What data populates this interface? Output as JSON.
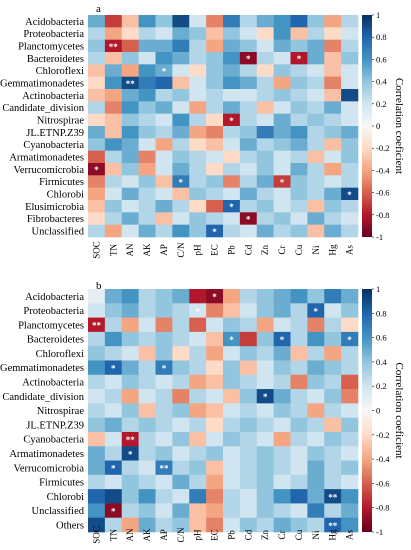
{
  "colorbar": {
    "ticks": [
      "1",
      "0.8",
      "0.6",
      "0.4",
      "0.2",
      "0",
      "-0.2",
      "-0.4",
      "-0.6",
      "-0.8",
      "-1"
    ],
    "tick_values": [
      1,
      0.8,
      0.6,
      0.4,
      0.2,
      0,
      -0.2,
      -0.4,
      -0.6,
      -0.8,
      -1
    ],
    "label": "Correlation coeficient",
    "palette": [
      "#67001f",
      "#b2182b",
      "#d6604d",
      "#f4a582",
      "#fddbc7",
      "#f7f7f7",
      "#d1e5f0",
      "#92c5de",
      "#4393c3",
      "#2166ac",
      "#053061"
    ]
  },
  "chart_data": [
    {
      "type": "heatmap",
      "panel_label": "a",
      "colorbar_label": "Correlation coeficient",
      "zlim": [
        -1,
        1
      ],
      "x": [
        "SOC",
        "TN",
        "AN",
        "AK",
        "AP",
        "C/N",
        "pH",
        "EC",
        "Pb",
        "Cd",
        "Zn",
        "Cr",
        "Cu",
        "Ni",
        "Hg",
        "As"
      ],
      "y": [
        "Acidobacteria",
        "Proteobacteria",
        "Planctomycetes",
        "Bacteroidetes",
        "Chloroflexi",
        "Gemmatimonadetes",
        "Actinobacteria",
        "Candidate_division",
        "Nitrospirae",
        "JL.ETNP.Z39",
        "Cyanobacteria",
        "Armatimonadetes",
        "Verrucomicrobia",
        "Firmicutes",
        "Chlorobi",
        "Elusimicrobia",
        "Fibrobacteres",
        "Unclassified"
      ],
      "z": [
        [
          0.5,
          -0.7,
          -0.3,
          0.6,
          0.4,
          0.9,
          0.2,
          -0.5,
          0.7,
          0.3,
          0.5,
          0.6,
          0.8,
          0.4,
          -0.4,
          0.3
        ],
        [
          0.3,
          -0.4,
          -0.2,
          0.3,
          0.2,
          0.5,
          0.4,
          -0.3,
          0.4,
          0.2,
          -0.2,
          0.6,
          -0.3,
          0.3,
          -0.2,
          0.2
        ],
        [
          0.4,
          -0.8,
          -0.6,
          0.5,
          0.5,
          0.7,
          0.3,
          -0.4,
          0.5,
          0.4,
          0.2,
          0.5,
          0.4,
          0.5,
          -0.5,
          0.3
        ],
        [
          0.3,
          -0.3,
          0.4,
          0.2,
          0.6,
          0.5,
          0.3,
          0.4,
          0.6,
          -0.9,
          0.3,
          0.2,
          -0.8,
          0.5,
          -0.3,
          0.4
        ],
        [
          -0.3,
          0.5,
          -0.4,
          0.6,
          0.5,
          0.2,
          -0.2,
          0.4,
          0.5,
          0.3,
          -0.2,
          0.4,
          0.3,
          0.2,
          -0.3,
          0.2
        ],
        [
          -0.2,
          0.6,
          0.9,
          0.7,
          0.8,
          -0.3,
          0.2,
          0.4,
          0.6,
          0.5,
          0.3,
          -0.4,
          0.4,
          0.3,
          -0.5,
          0.2
        ],
        [
          -0.3,
          -0.4,
          0.5,
          0.6,
          0.3,
          0.4,
          0.2,
          0.3,
          0.2,
          0.2,
          0.3,
          0.4,
          0.3,
          0.2,
          -0.3,
          0.9
        ],
        [
          0.3,
          -0.5,
          0.6,
          0.4,
          0.5,
          0.2,
          -0.4,
          0.3,
          0.5,
          0.3,
          -0.3,
          0.2,
          0.4,
          0.3,
          0.5,
          0.2
        ],
        [
          -0.2,
          -0.3,
          0.4,
          0.3,
          0.2,
          0.6,
          0.3,
          -0.2,
          -0.8,
          0.3,
          0.2,
          0.5,
          0.3,
          0.4,
          0.3,
          0.2
        ],
        [
          0.5,
          -0.3,
          0.6,
          0.4,
          0.3,
          0.5,
          -0.4,
          -0.5,
          0.3,
          0.4,
          0.7,
          0.5,
          0.6,
          0.3,
          0.4,
          0.5
        ],
        [
          0.4,
          0.6,
          0.5,
          0.2,
          -0.4,
          0.3,
          -0.2,
          -0.3,
          0.2,
          0.5,
          0.3,
          0.4,
          0.5,
          0.3,
          -0.3,
          0.4
        ],
        [
          -0.6,
          0.3,
          0.5,
          -0.5,
          0.2,
          0.4,
          0.3,
          0.2,
          -0.2,
          0.3,
          0.4,
          0.2,
          0.3,
          -0.3,
          0.2,
          0.4
        ],
        [
          -0.9,
          -0.3,
          0.4,
          -0.4,
          0.2,
          0.5,
          0.3,
          -0.2,
          0.3,
          0.2,
          0.4,
          0.2,
          0.5,
          0.3,
          -0.4,
          0.3
        ],
        [
          -0.5,
          0.3,
          0.2,
          0.4,
          -0.3,
          0.7,
          0.3,
          0.4,
          -0.5,
          0.3,
          0.5,
          -0.7,
          0.4,
          0.3,
          0.2,
          0.3
        ],
        [
          -0.4,
          0.2,
          0.5,
          0.3,
          0.2,
          -0.3,
          0.4,
          0.3,
          0.2,
          0.5,
          0.3,
          0.2,
          0.4,
          0.3,
          0.5,
          0.9
        ],
        [
          -0.3,
          0.4,
          0.2,
          0.3,
          0.5,
          0.3,
          -0.2,
          -0.6,
          0.8,
          0.3,
          0.4,
          0.2,
          0.3,
          -0.3,
          0.4,
          0.3
        ],
        [
          -0.2,
          0.3,
          0.5,
          0.3,
          -0.3,
          0.2,
          0.4,
          0.3,
          0.2,
          -0.9,
          0.3,
          0.4,
          0.2,
          0.5,
          0.3,
          0.2
        ],
        [
          0.3,
          -0.4,
          0.2,
          0.5,
          0.3,
          0.6,
          0.4,
          0.8,
          0.3,
          0.2,
          0.5,
          0.3,
          0.4,
          -0.3,
          0.5,
          0.3
        ]
      ],
      "annotations": [
        {
          "row": "Planctomycetes",
          "col": "TN",
          "text": "**"
        },
        {
          "row": "Bacteroidetes",
          "col": "Cd",
          "text": "*"
        },
        {
          "row": "Bacteroidetes",
          "col": "Cu",
          "text": "*"
        },
        {
          "row": "Chloroflexi",
          "col": "AP",
          "text": "*"
        },
        {
          "row": "Gemmatimonadetes",
          "col": "AN",
          "text": "**"
        },
        {
          "row": "Nitrospirae",
          "col": "Pb",
          "text": "*"
        },
        {
          "row": "Verrucomicrobia",
          "col": "SOC",
          "text": "*"
        },
        {
          "row": "Firmicutes",
          "col": "C/N",
          "text": "*"
        },
        {
          "row": "Firmicutes",
          "col": "Cr",
          "text": "*"
        },
        {
          "row": "Chlorobi",
          "col": "As",
          "text": "*"
        },
        {
          "row": "Elusimicrobia",
          "col": "Pb",
          "text": "*"
        },
        {
          "row": "Fibrobacteres",
          "col": "Cd",
          "text": "*"
        },
        {
          "row": "Unclassified",
          "col": "EC",
          "text": "*"
        }
      ]
    },
    {
      "type": "heatmap",
      "panel_label": "b",
      "colorbar_label": "Correlation coeficient",
      "zlim": [
        -1,
        1
      ],
      "x": [
        "SOC",
        "TN",
        "AN",
        "AK",
        "AP",
        "C/N",
        "pH",
        "EC",
        "Pb",
        "Cd",
        "Zn",
        "Cr",
        "Cu",
        "Ni",
        "Hg",
        "As"
      ],
      "y": [
        "Acidobacteria",
        "Proteobacteria",
        "Planctomycetes",
        "Bacteroidetes",
        "Chloroflexi",
        "Gemmatimonadetes",
        "Actinobacteria",
        "Candidate_division",
        "Nitrospirae",
        "JL.ETNP.Z39",
        "Cyanobacteria",
        "Armatimonadetes",
        "Verrucomicrobia",
        "Firmicutes",
        "Chlorobi",
        "Unclassified",
        "Others"
      ],
      "z": [
        [
          0.1,
          0.5,
          0.6,
          0.3,
          0.4,
          0.5,
          -0.8,
          -0.9,
          -0.4,
          0.3,
          0.4,
          0.5,
          0.6,
          0.4,
          0.7,
          0.5
        ],
        [
          0.2,
          0.4,
          0.5,
          0.3,
          0.4,
          0.3,
          0.2,
          -0.5,
          -0.3,
          0.2,
          0.4,
          0.5,
          0.3,
          0.8,
          0.2,
          0.4
        ],
        [
          -0.8,
          0.3,
          -0.4,
          0.2,
          -0.5,
          0.3,
          -0.6,
          0.2,
          0.4,
          0.3,
          -0.4,
          0.2,
          0.3,
          -0.5,
          0.3,
          -0.2
        ],
        [
          0.3,
          0.6,
          0.4,
          0.3,
          0.4,
          0.3,
          0.2,
          -0.3,
          0.6,
          -0.7,
          0.4,
          0.8,
          0.3,
          0.6,
          0.4,
          0.7
        ],
        [
          0.4,
          0.3,
          0.2,
          -0.3,
          0.4,
          -0.2,
          0.3,
          -0.4,
          0.2,
          0.4,
          0.3,
          0.5,
          -0.3,
          0.3,
          -0.4,
          0.3
        ],
        [
          0.6,
          0.8,
          0.5,
          0.3,
          0.7,
          0.4,
          0.3,
          -0.2,
          0.4,
          -0.3,
          0.2,
          0.4,
          0.3,
          0.5,
          0.4,
          0.3
        ],
        [
          0.3,
          0.2,
          0.4,
          0.3,
          0.2,
          0.3,
          -0.4,
          -0.3,
          0.4,
          0.3,
          0.2,
          0.3,
          -0.5,
          0.4,
          0.3,
          -0.6
        ],
        [
          0.2,
          0.3,
          -0.4,
          0.2,
          0.3,
          -0.5,
          0.3,
          0.2,
          -0.3,
          0.4,
          0.9,
          0.5,
          0.3,
          0.2,
          0.4,
          -0.5
        ],
        [
          0.3,
          0.2,
          0.4,
          -0.3,
          0.3,
          0.4,
          -0.4,
          -0.3,
          0.2,
          0.3,
          0.2,
          0.4,
          0.3,
          -0.4,
          0.3,
          0.2
        ],
        [
          0.4,
          0.5,
          0.3,
          0.4,
          0.3,
          0.2,
          0.3,
          -0.2,
          0.3,
          0.4,
          0.3,
          0.2,
          0.4,
          0.3,
          -0.3,
          0.4
        ],
        [
          -0.3,
          0.2,
          -0.8,
          0.3,
          0.2,
          0.4,
          -0.3,
          0.2,
          0.4,
          0.3,
          0.2,
          -0.4,
          0.3,
          0.2,
          0.4,
          0.3
        ],
        [
          0.5,
          0.3,
          0.9,
          0.3,
          0.4,
          0.2,
          0.3,
          0.4,
          0.2,
          0.3,
          0.4,
          0.3,
          0.2,
          0.4,
          0.3,
          0.2
        ],
        [
          0.5,
          0.8,
          0.3,
          0.2,
          0.7,
          0.3,
          0.4,
          -0.3,
          0.2,
          0.3,
          0.4,
          0.3,
          0.2,
          0.5,
          0.3,
          0.4
        ],
        [
          0.3,
          0.2,
          0.4,
          0.3,
          0.2,
          0.5,
          0.3,
          -0.4,
          0.2,
          0.3,
          0.4,
          0.2,
          0.3,
          0.5,
          0.3,
          0.2
        ],
        [
          0.8,
          0.9,
          0.4,
          0.6,
          0.3,
          0.2,
          0.7,
          -0.5,
          0.3,
          0.2,
          0.4,
          0.6,
          0.8,
          0.5,
          0.9,
          0.6
        ],
        [
          0.6,
          -0.9,
          0.3,
          0.4,
          0.2,
          0.5,
          -0.3,
          -0.4,
          0.3,
          0.2,
          0.4,
          0.3,
          0.2,
          0.7,
          0.3,
          0.5
        ],
        [
          0.9,
          0.3,
          -0.4,
          0.5,
          0.3,
          0.4,
          -0.3,
          -0.5,
          0.2,
          0.4,
          0.3,
          0.5,
          0.4,
          0.3,
          0.8,
          0.6
        ]
      ],
      "annotations": [
        {
          "row": "Acidobacteria",
          "col": "EC",
          "text": "*"
        },
        {
          "row": "Proteobacteria",
          "col": "pH",
          "text": "*"
        },
        {
          "row": "Proteobacteria",
          "col": "Ni",
          "text": "*"
        },
        {
          "row": "Planctomycetes",
          "col": "SOC",
          "text": "**"
        },
        {
          "row": "Bacteroidetes",
          "col": "Pb",
          "text": "*"
        },
        {
          "row": "Bacteroidetes",
          "col": "Cr",
          "text": "*"
        },
        {
          "row": "Bacteroidetes",
          "col": "As",
          "text": "*"
        },
        {
          "row": "Gemmatimonadetes",
          "col": "TN",
          "text": "*"
        },
        {
          "row": "Gemmatimonadetes",
          "col": "AP",
          "text": "*"
        },
        {
          "row": "Candidate_division",
          "col": "Zn",
          "text": "*"
        },
        {
          "row": "Cyanobacteria",
          "col": "AN",
          "text": "**"
        },
        {
          "row": "Armatimonadetes",
          "col": "AN",
          "text": "*"
        },
        {
          "row": "Verrucomicrobia",
          "col": "TN",
          "text": "*"
        },
        {
          "row": "Verrucomicrobia",
          "col": "AP",
          "text": "**"
        },
        {
          "row": "Chlorobi",
          "col": "Hg",
          "text": "**"
        },
        {
          "row": "Unclassified",
          "col": "TN",
          "text": "*"
        },
        {
          "row": "Others",
          "col": "Hg",
          "text": "**"
        }
      ]
    }
  ]
}
